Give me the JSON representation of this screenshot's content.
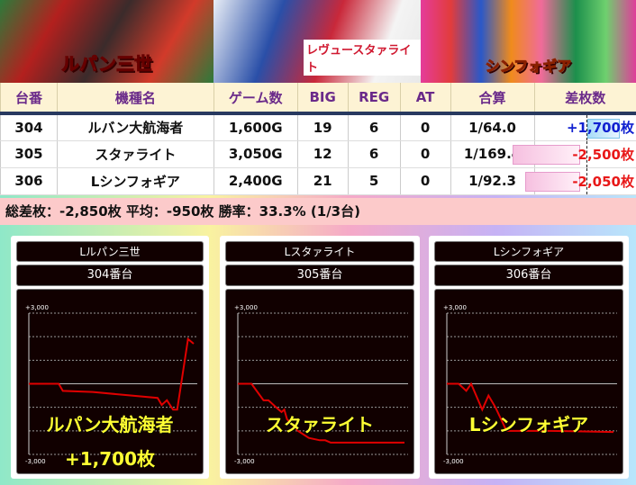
{
  "banners": [
    {
      "logo": "ルパン三世"
    },
    {
      "logo": "レヴュースタァライト"
    },
    {
      "logo": "シンフォギア"
    }
  ],
  "table": {
    "headers": [
      "台番",
      "機種名",
      "ゲーム数",
      "BIG",
      "REG",
      "AT",
      "合算",
      "差枚数"
    ],
    "rows": [
      {
        "no": "304",
        "name": "ルバン大航海者",
        "games": "1,600G",
        "big": "19",
        "reg": "6",
        "at": "0",
        "combined": "1/64.0",
        "diff": "+1,700枚",
        "diff_value": 1700
      },
      {
        "no": "305",
        "name": "スタァライト",
        "games": "3,050G",
        "big": "12",
        "reg": "6",
        "at": "0",
        "combined": "1/169.4",
        "diff": "-2,500枚",
        "diff_value": -2500
      },
      {
        "no": "306",
        "name": "Lシンフォギア",
        "games": "2,400G",
        "big": "21",
        "reg": "5",
        "at": "0",
        "combined": "1/92.3",
        "diff": "-2,050枚",
        "diff_value": -2050
      }
    ]
  },
  "summary": "総差枚：-2,850枚  平均：-950枚  勝率：33.3% (1/3台)",
  "colors": {
    "positive": "#1020d0",
    "negative": "#e81818",
    "line": "#e00000",
    "header_text": "#6a2a8a"
  },
  "chart_data": [
    {
      "type": "line",
      "title": "Lルパン三世",
      "subtitle": "304番台",
      "ymax_label": "+3,000",
      "ymin_label": "-3,000",
      "ylim": [
        -3000,
        3000
      ],
      "grid": true,
      "overlay_name": "ルパン大航海者",
      "overlay_value": "+1,700枚",
      "x": [
        0,
        290,
        330,
        620,
        1250,
        1290,
        1340,
        1400,
        1440,
        1545,
        1600
      ],
      "values": [
        0,
        0,
        -300,
        -350,
        -600,
        -900,
        -700,
        -1100,
        -1100,
        1900,
        1700
      ]
    },
    {
      "type": "line",
      "title": "Lスタァライト",
      "subtitle": "305番台",
      "ymax_label": "+3,000",
      "ymin_label": "-3,000",
      "ylim": [
        -3000,
        3000
      ],
      "grid": true,
      "overlay_name": "スタァライト",
      "overlay_value": "",
      "x": [
        0,
        250,
        470,
        560,
        700,
        800,
        850,
        900,
        1100,
        1300,
        1500,
        1600,
        1700,
        2300,
        3050
      ],
      "values": [
        0,
        0,
        -700,
        -700,
        -1000,
        -1200,
        -1100,
        -1500,
        -2000,
        -2300,
        -2400,
        -2400,
        -2500,
        -2500,
        -2500
      ]
    },
    {
      "type": "line",
      "title": "Lシンフォギア",
      "subtitle": "306番台",
      "ymax_label": "+3,000",
      "ymin_label": "-3,000",
      "ylim": [
        -3000,
        3000
      ],
      "grid": true,
      "overlay_name": "Lシンフォギア",
      "overlay_value": "",
      "x": [
        0,
        170,
        280,
        350,
        510,
        600,
        700,
        860,
        1500,
        2400
      ],
      "values": [
        0,
        0,
        -300,
        0,
        -1100,
        -500,
        -1000,
        -2000,
        -2000,
        -2050
      ]
    }
  ]
}
